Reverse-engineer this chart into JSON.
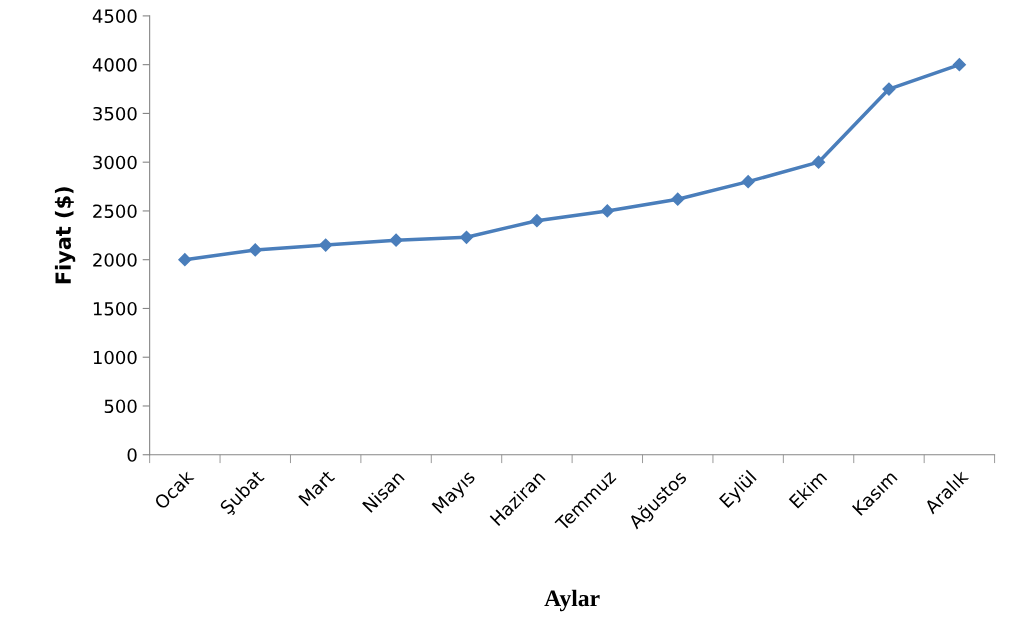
{
  "chart_data": {
    "type": "line",
    "categories": [
      "Ocak",
      "Şubat",
      "Mart",
      "Nisan",
      "Mayıs",
      "Haziran",
      "Temmuz",
      "Ağustos",
      "Eylül",
      "Ekim",
      "Kasım",
      "Aralık"
    ],
    "series": [
      {
        "color": "#4a7ebb",
        "values": [
          2000,
          2100,
          2150,
          2200,
          2230,
          2400,
          2500,
          2620,
          2800,
          3000,
          3750,
          4000
        ]
      }
    ],
    "xlabel": "Aylar",
    "ylabel": "Fiyat ($)",
    "ylim": [
      0,
      4500
    ],
    "yticks": [
      0,
      500,
      1000,
      1500,
      2000,
      2500,
      3000,
      3500,
      4000,
      4500
    ],
    "grid": false,
    "legend": false,
    "marker": "diamond",
    "line_style": "solid"
  }
}
